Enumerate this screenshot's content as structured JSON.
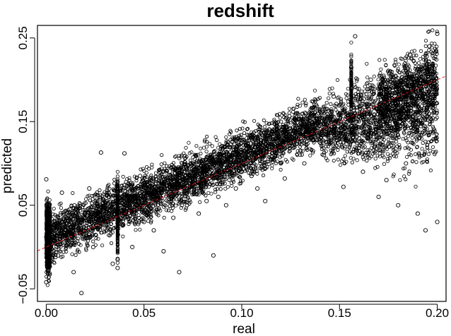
{
  "chart_data": {
    "type": "scatter",
    "title": "redshift",
    "xlabel": "real",
    "ylabel": "predicted",
    "xlim": [
      -0.0045,
      0.2045
    ],
    "ylim": [
      -0.065,
      0.265
    ],
    "x_ticks": [
      0.0,
      0.05,
      0.1,
      0.15,
      0.2
    ],
    "x_tick_labels": [
      "0.00",
      "0.05",
      "0.10",
      "0.15",
      "0.20"
    ],
    "y_ticks": [
      -0.05,
      0.05,
      0.15,
      0.25
    ],
    "y_tick_labels": [
      "−0.05",
      "0.05",
      "0.15",
      "0.25"
    ],
    "grid": false,
    "marker": "open-circle",
    "reference_line": {
      "slope": 1,
      "intercept": 0,
      "style": "dashed",
      "color": "#e8161e"
    },
    "colors": {
      "points": "#000000",
      "reference_line": "#e8161e"
    },
    "series": [
      {
        "points": [
          [
            0.0,
            0.012
          ],
          [
            0.0,
            -0.042
          ],
          [
            0.0,
            0.081
          ],
          [
            0.001,
            0.02
          ],
          [
            0.002,
            0.005
          ],
          [
            0.004,
            0.03
          ],
          [
            0.006,
            -0.01
          ],
          [
            0.008,
            0.065
          ],
          [
            0.01,
            0.02
          ],
          [
            0.012,
            0.045
          ],
          [
            0.014,
            -0.03
          ],
          [
            0.016,
            0.03
          ],
          [
            0.018,
            -0.055
          ],
          [
            0.02,
            0.035
          ],
          [
            0.022,
            0.07
          ],
          [
            0.024,
            0.0
          ],
          [
            0.026,
            0.04
          ],
          [
            0.028,
            0.113
          ],
          [
            0.03,
            0.03
          ],
          [
            0.032,
            0.06
          ],
          [
            0.034,
            -0.02
          ],
          [
            0.0365,
            0.04
          ],
          [
            0.0365,
            -0.015
          ],
          [
            0.0365,
            -0.025
          ],
          [
            0.038,
            0.05
          ],
          [
            0.04,
            0.112
          ],
          [
            0.042,
            0.06
          ],
          [
            0.044,
            0.0
          ],
          [
            0.046,
            0.05
          ],
          [
            0.048,
            0.085
          ],
          [
            0.05,
            0.03
          ],
          [
            0.052,
            0.06
          ],
          [
            0.055,
            0.02
          ],
          [
            0.058,
            0.09
          ],
          [
            0.06,
            -0.005
          ],
          [
            0.062,
            0.07
          ],
          [
            0.065,
            0.035
          ],
          [
            0.068,
            -0.03
          ],
          [
            0.07,
            0.08
          ],
          [
            0.072,
            0.05
          ],
          [
            0.075,
            0.1
          ],
          [
            0.078,
            0.04
          ],
          [
            0.08,
            0.085
          ],
          [
            0.082,
            0.055
          ],
          [
            0.085,
            0.1
          ],
          [
            0.0855,
            -0.01
          ],
          [
            0.088,
            0.06
          ],
          [
            0.09,
            0.09
          ],
          [
            0.092,
            0.05
          ],
          [
            0.095,
            0.11
          ],
          [
            0.097,
            0.07
          ],
          [
            0.1,
            0.09
          ],
          [
            0.102,
            0.125
          ],
          [
            0.105,
            0.085
          ],
          [
            0.108,
            0.07
          ],
          [
            0.11,
            0.11
          ],
          [
            0.112,
            0.055
          ],
          [
            0.115,
            0.105
          ],
          [
            0.118,
            0.14
          ],
          [
            0.12,
            0.1
          ],
          [
            0.122,
            0.082
          ],
          [
            0.125,
            0.125
          ],
          [
            0.128,
            0.16
          ],
          [
            0.13,
            0.115
          ],
          [
            0.132,
            0.1
          ],
          [
            0.135,
            0.13
          ],
          [
            0.138,
            0.17
          ],
          [
            0.14,
            0.125
          ],
          [
            0.142,
            0.11
          ],
          [
            0.145,
            0.14
          ],
          [
            0.147,
            0.18
          ],
          [
            0.15,
            0.13
          ],
          [
            0.152,
            0.072
          ],
          [
            0.154,
            0.15
          ],
          [
            0.1555,
            0.2
          ],
          [
            0.156,
            0.215
          ],
          [
            0.157,
            0.17
          ],
          [
            0.158,
            0.252
          ],
          [
            0.16,
            0.13
          ],
          [
            0.162,
            0.09
          ],
          [
            0.164,
            0.16
          ],
          [
            0.166,
            0.2
          ],
          [
            0.168,
            0.12
          ],
          [
            0.17,
            0.06
          ],
          [
            0.172,
            0.17
          ],
          [
            0.174,
            0.08
          ],
          [
            0.176,
            0.21
          ],
          [
            0.178,
            0.14
          ],
          [
            0.18,
            0.05
          ],
          [
            0.182,
            0.19
          ],
          [
            0.184,
            0.1
          ],
          [
            0.186,
            0.23
          ],
          [
            0.188,
            0.15
          ],
          [
            0.19,
            0.04
          ],
          [
            0.192,
            0.2
          ],
          [
            0.194,
            0.02
          ],
          [
            0.196,
            0.24
          ],
          [
            0.198,
            0.17
          ],
          [
            0.2,
            0.255
          ],
          [
            0.2,
            0.03
          ]
        ]
      }
    ]
  }
}
